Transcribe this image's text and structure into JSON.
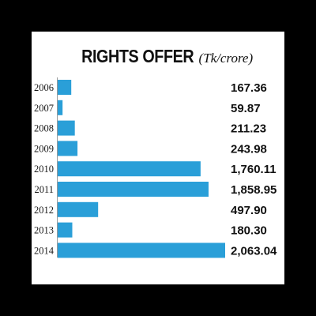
{
  "chart_data": {
    "type": "bar",
    "orientation": "horizontal",
    "title": "RIGHTS OFFER",
    "unit": "(Tk/crore)",
    "categories": [
      "2006",
      "2007",
      "2008",
      "2009",
      "2010",
      "2011",
      "2012",
      "2013",
      "2014"
    ],
    "values": [
      167.36,
      59.87,
      211.23,
      243.98,
      1760.11,
      1858.95,
      497.9,
      180.3,
      2063.04
    ],
    "value_labels": [
      "167.36",
      "59.87",
      "211.23",
      "243.98",
      "1,760.11",
      "1,858.95",
      "497.90",
      "180.30",
      "2,063.04"
    ],
    "bar_color": "#2a9fd8",
    "grid": false,
    "legend": "none"
  }
}
